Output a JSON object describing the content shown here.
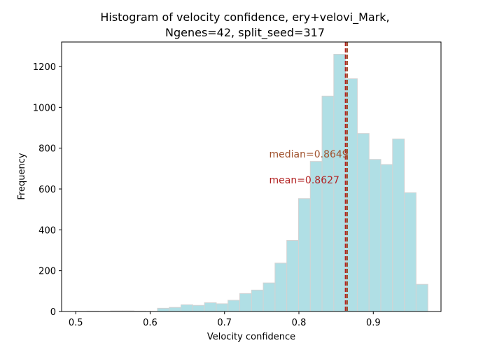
{
  "chart_data": {
    "type": "bar",
    "title_line1": "Histogram of velocity confidence, ery+velovi_Mark,",
    "title_line2": "Ngenes=42, split_seed=317",
    "xlabel": "Velocity confidence",
    "ylabel": "Frequency",
    "xlim": [
      0.481,
      0.991
    ],
    "ylim": [
      0,
      1320
    ],
    "xticks": [
      0.5,
      0.6,
      0.7,
      0.8,
      0.9
    ],
    "xtick_labels": [
      "0.5",
      "0.6",
      "0.7",
      "0.8",
      "0.9"
    ],
    "yticks": [
      0,
      200,
      400,
      600,
      800,
      1000,
      1200
    ],
    "ytick_labels": [
      "0",
      "200",
      "400",
      "600",
      "800",
      "1000",
      "1200"
    ],
    "bin_edges": [
      0.4993,
      0.5151,
      0.5309,
      0.5467,
      0.5625,
      0.5783,
      0.5941,
      0.6099,
      0.6257,
      0.6415,
      0.6573,
      0.6731,
      0.6889,
      0.7047,
      0.7205,
      0.7363,
      0.7521,
      0.7679,
      0.7837,
      0.7995,
      0.8153,
      0.8311,
      0.8469,
      0.8627,
      0.8785,
      0.8943,
      0.9101,
      0.9259,
      0.9417,
      0.9575,
      0.9733
    ],
    "counts": [
      1,
      2,
      1,
      3,
      3,
      2,
      1,
      16,
      20,
      33,
      30,
      43,
      38,
      55,
      88,
      105,
      140,
      237,
      348,
      553,
      735,
      1055,
      1260,
      1140,
      872,
      745,
      720,
      845,
      582,
      133
    ],
    "bar_color": "#b0dfe5",
    "bar_edge_color": "#d3d3d3",
    "median": {
      "value": 0.8649,
      "label": "median=0.8649",
      "color": "#a0522d"
    },
    "mean": {
      "value": 0.8627,
      "label": "mean=0.8627",
      "color": "#b22222"
    }
  }
}
